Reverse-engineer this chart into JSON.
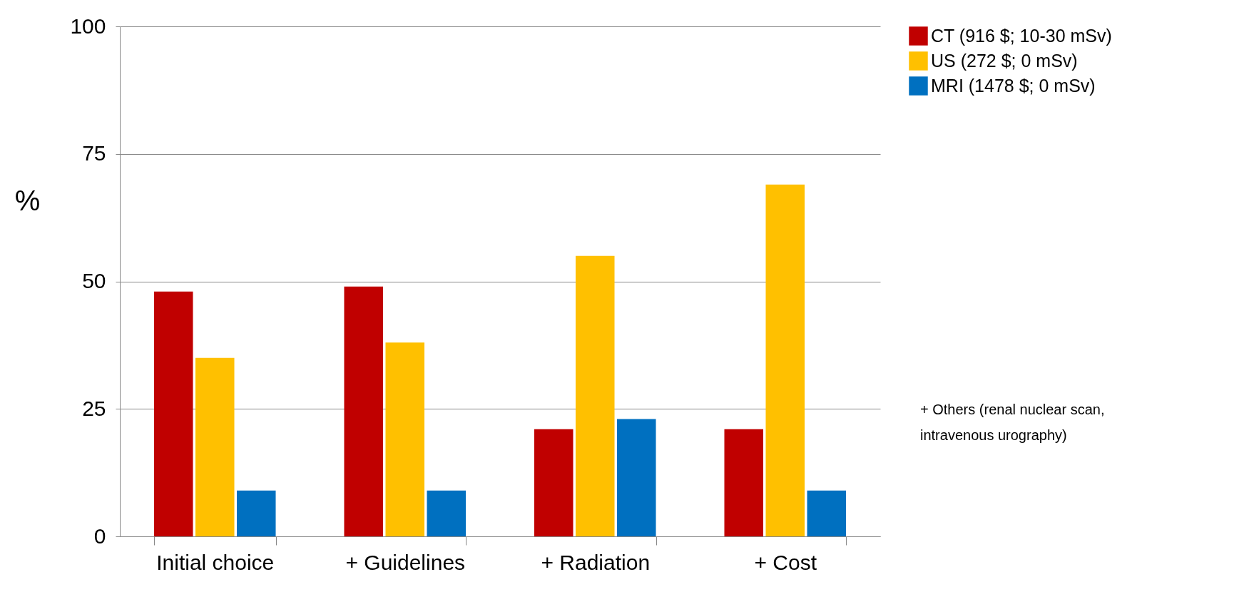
{
  "chart_data": {
    "type": "bar",
    "ylabel": "%",
    "categories": [
      "Initial choice",
      "+ Guidelines",
      "+ Radiation",
      "+ Cost"
    ],
    "series": [
      {
        "name": "CT (916 $; 10-30 mSv)",
        "color": "#c00000",
        "values": [
          48,
          49,
          21,
          21
        ]
      },
      {
        "name": "US (272 $; 0 mSv)",
        "color": "#ffc000",
        "values": [
          35,
          38,
          55,
          69
        ]
      },
      {
        "name": "MRI (1478 $; 0 mSv)",
        "color": "#0070c0",
        "values": [
          9,
          9,
          23,
          9
        ]
      }
    ],
    "ylim": [
      0,
      100
    ],
    "yticks": [
      0,
      25,
      50,
      75,
      100
    ],
    "grid": "y",
    "legend": "right",
    "annotations": [
      "+ Others (renal nuclear scan, intravenous urography)"
    ]
  }
}
